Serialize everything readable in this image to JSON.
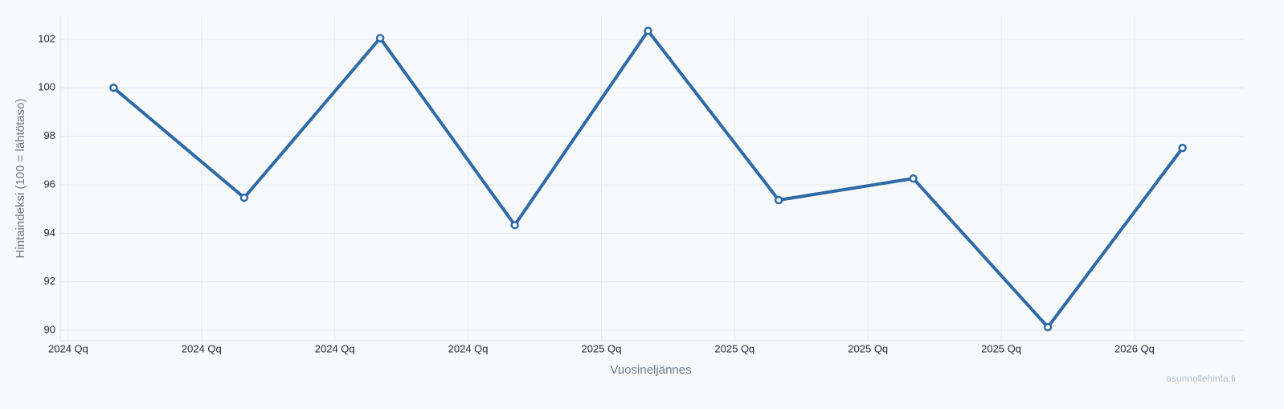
{
  "chart_data": {
    "type": "line",
    "x_label": "Vuosineljännes",
    "y_label": "Hintaindeksi (100 = lähtötaso)",
    "watermark": "asunnollehinta.fi",
    "x": [
      0.34,
      1.32,
      2.34,
      3.35,
      4.35,
      5.33,
      6.34,
      7.35,
      8.36
    ],
    "series": [
      {
        "color": "#2f6aa7",
        "values": [
          100.0,
          95.47,
          102.05,
          94.34,
          102.35,
          95.37,
          96.26,
          90.13,
          97.52
        ]
      }
    ],
    "xlim": [
      -0.06,
      8.82
    ],
    "xticks": [
      {
        "value": 0,
        "label": "2024 Qq"
      },
      {
        "value": 1,
        "label": "2024 Qq"
      },
      {
        "value": 2,
        "label": "2024 Qq"
      },
      {
        "value": 3,
        "label": "2024 Qq"
      },
      {
        "value": 4,
        "label": "2025 Qq"
      },
      {
        "value": 5,
        "label": "2025 Qq"
      },
      {
        "value": 6,
        "label": "2025 Qq"
      },
      {
        "value": 7,
        "label": "2025 Qq"
      },
      {
        "value": 8,
        "label": "2026 Qq"
      }
    ],
    "ylim": [
      89.57,
      102.96
    ],
    "yticks": [
      90,
      92,
      94,
      96,
      98,
      100,
      102
    ],
    "grid": true
  }
}
